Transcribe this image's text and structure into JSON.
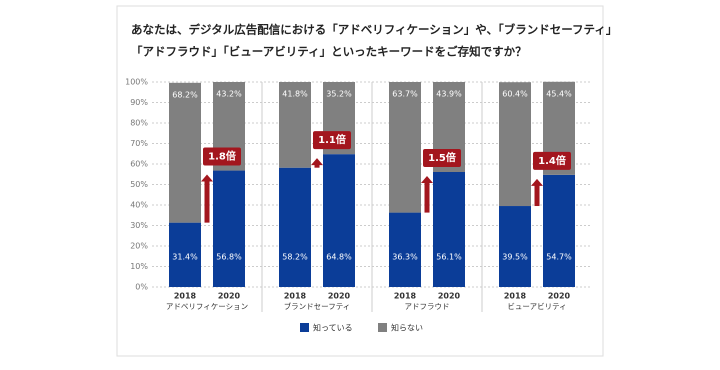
{
  "chart_data": {
    "type": "bar",
    "title": [
      "あなたは、デジタル広告配信における「アドベリフィケーション」や、「ブランドセーフティ」",
      "「アドフラウド」「ビューアビリティ」といったキーワードをご存知ですか？"
    ],
    "categories": [
      "2018",
      "2020",
      "2018",
      "2020",
      "2018",
      "2020",
      "2018",
      "2020"
    ],
    "groups": [
      "アドベリフィケーション",
      "ブランドセーフティ",
      "アドフラウド",
      "ビューアビリティ"
    ],
    "series": [
      {
        "name": "知っている",
        "color": "#0b3d98",
        "values": [
          31.4,
          56.8,
          58.2,
          64.8,
          36.3,
          56.1,
          39.5,
          54.7
        ],
        "value_labels": [
          "31.4%",
          "56.8%",
          "58.2%",
          "64.8%",
          "36.3%",
          "56.1%",
          "39.5%",
          "54.7%"
        ]
      },
      {
        "name": "知らない",
        "color": "#808080",
        "values": [
          68.2,
          43.2,
          41.8,
          35.2,
          63.7,
          43.9,
          60.4,
          45.4
        ],
        "value_labels": [
          "68.2%",
          "43.2%",
          "41.8%",
          "35.2%",
          "63.7%",
          "43.9%",
          "60.4%",
          "45.4%"
        ]
      }
    ],
    "annotations": [
      "1.8倍",
      "1.1倍",
      "1.5倍",
      "1.4倍"
    ],
    "stacked": true,
    "ylim": [
      0,
      100
    ],
    "yticks": [
      {
        "value": 0,
        "label": "0%"
      },
      {
        "value": 10,
        "label": "10%"
      },
      {
        "value": 20,
        "label": "20%"
      },
      {
        "value": 30,
        "label": "30%"
      },
      {
        "value": 40,
        "label": "40%"
      },
      {
        "value": 50,
        "label": "50%"
      },
      {
        "value": 60,
        "label": "60%"
      },
      {
        "value": 70,
        "label": "70%"
      },
      {
        "value": 80,
        "label": "80%"
      },
      {
        "value": 90,
        "label": "90%"
      },
      {
        "value": 100,
        "label": "100%"
      }
    ],
    "grid": true,
    "legend": "bottom"
  }
}
